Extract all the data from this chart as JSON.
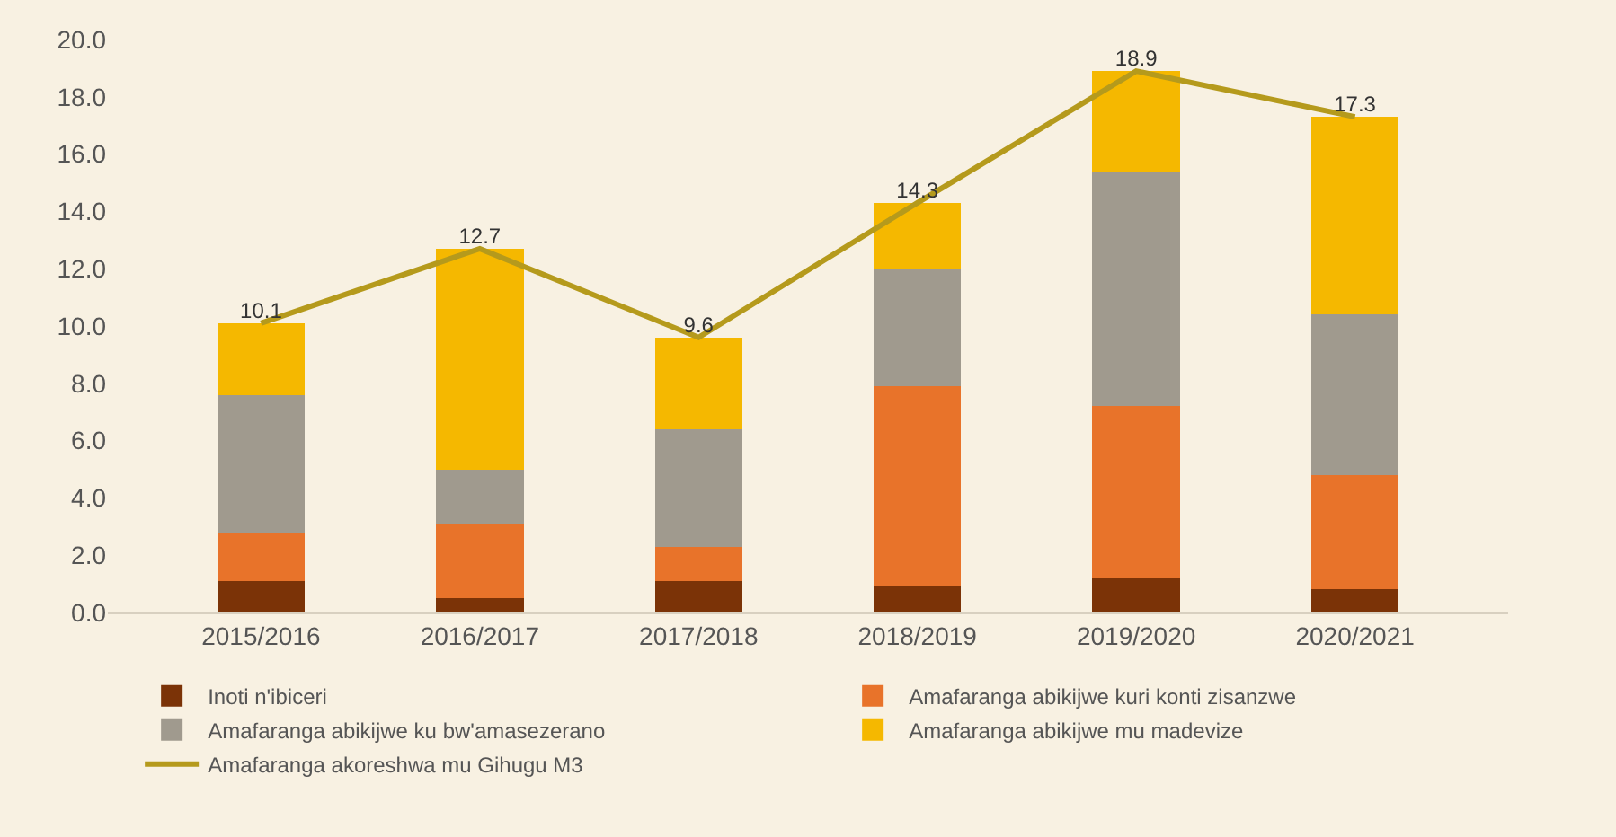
{
  "chart_data": {
    "type": "bar",
    "stacked": true,
    "categories": [
      "2015/2016",
      "2016/2017",
      "2017/2018",
      "2018/2019",
      "2019/2020",
      "2020/2021"
    ],
    "series": [
      {
        "name": "Inoti n'ibiceri",
        "color": "#7b3307",
        "values": [
          1.1,
          0.5,
          1.1,
          0.9,
          1.2,
          0.8
        ]
      },
      {
        "name": "Amafaranga abikijwe kuri konti zisanzwe",
        "color": "#e8732a",
        "values": [
          1.7,
          2.6,
          1.2,
          7.0,
          6.0,
          4.0
        ]
      },
      {
        "name": "Amafaranga abikijwe ku bw'amasezerano",
        "color": "#a09a8e",
        "values": [
          4.8,
          1.9,
          4.1,
          4.1,
          8.2,
          5.6
        ]
      },
      {
        "name": "Amafaranga abikijwe mu madevize",
        "color": "#f5b800",
        "values": [
          2.5,
          7.7,
          3.2,
          2.3,
          3.5,
          6.9
        ]
      },
      {
        "name": "Amafaranga akoreshwa mu Gihugu M3",
        "color": "#b59a1c",
        "type": "line",
        "values": [
          10.1,
          12.7,
          9.6,
          14.3,
          18.9,
          17.3
        ],
        "value_labels": [
          "10.1",
          "12.7",
          "9.6",
          "14.3",
          "18.9",
          "17.3"
        ]
      }
    ],
    "ylim": [
      0,
      20
    ],
    "yticks": [
      {
        "value": 0,
        "label": "0.0"
      },
      {
        "value": 2,
        "label": "2.0"
      },
      {
        "value": 4,
        "label": "4.0"
      },
      {
        "value": 6,
        "label": "6.0"
      },
      {
        "value": 8,
        "label": "8.0"
      },
      {
        "value": 10,
        "label": "10.0"
      },
      {
        "value": 12,
        "label": "12.0"
      },
      {
        "value": 14,
        "label": "14.0"
      },
      {
        "value": 16,
        "label": "16.0"
      },
      {
        "value": 18,
        "label": "18.0"
      },
      {
        "value": 20,
        "label": "20.0"
      }
    ],
    "grid": false,
    "legend": "bottom",
    "marker": "none",
    "line_style": "solid"
  }
}
